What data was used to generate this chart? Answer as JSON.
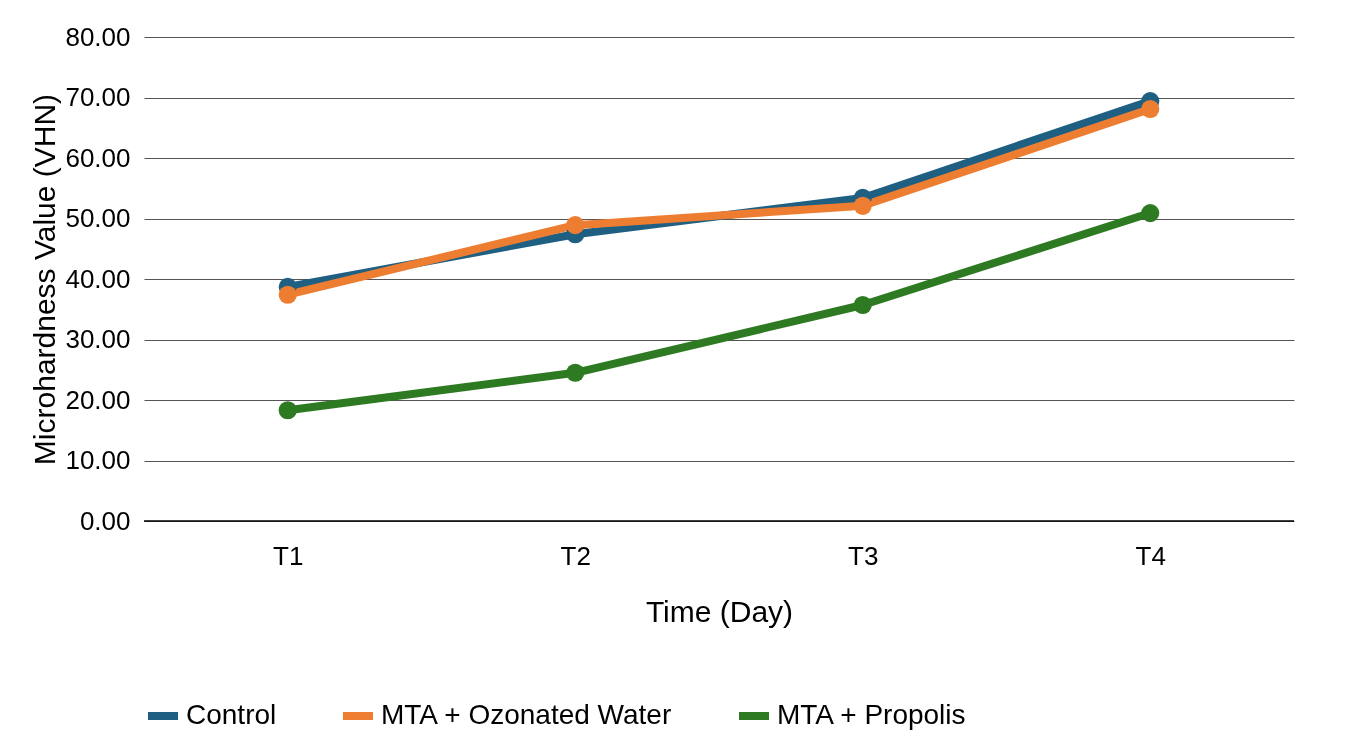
{
  "chart_data": {
    "type": "line",
    "xlabel": "Time (Day)",
    "ylabel": "Microhardness Value (VHN)",
    "categories": [
      "T1",
      "T2",
      "T3",
      "T4"
    ],
    "series": [
      {
        "name": "Control",
        "color": "#1f5f82",
        "values": [
          38.7,
          47.4,
          53.4,
          69.4
        ]
      },
      {
        "name": "MTA + Ozonated Water",
        "color": "#ed7d31",
        "values": [
          37.4,
          48.9,
          52.1,
          68.1
        ]
      },
      {
        "name": "MTA + Propolis",
        "color": "#2e7a22",
        "values": [
          18.3,
          24.5,
          35.7,
          50.9
        ]
      }
    ],
    "ylim": [
      0,
      80
    ],
    "yticks": [
      {
        "value": 0,
        "label": "0.00"
      },
      {
        "value": 10,
        "label": "10.00"
      },
      {
        "value": 20,
        "label": "20.00"
      },
      {
        "value": 30,
        "label": "30.00"
      },
      {
        "value": 40,
        "label": "40.00"
      },
      {
        "value": 50,
        "label": "50.00"
      },
      {
        "value": 60,
        "label": "60.00"
      },
      {
        "value": 70,
        "label": "70.00"
      },
      {
        "value": 80,
        "label": "80.00"
      }
    ],
    "grid": "y",
    "legend": "bottom",
    "marker": "circle",
    "line_style": "solid"
  }
}
